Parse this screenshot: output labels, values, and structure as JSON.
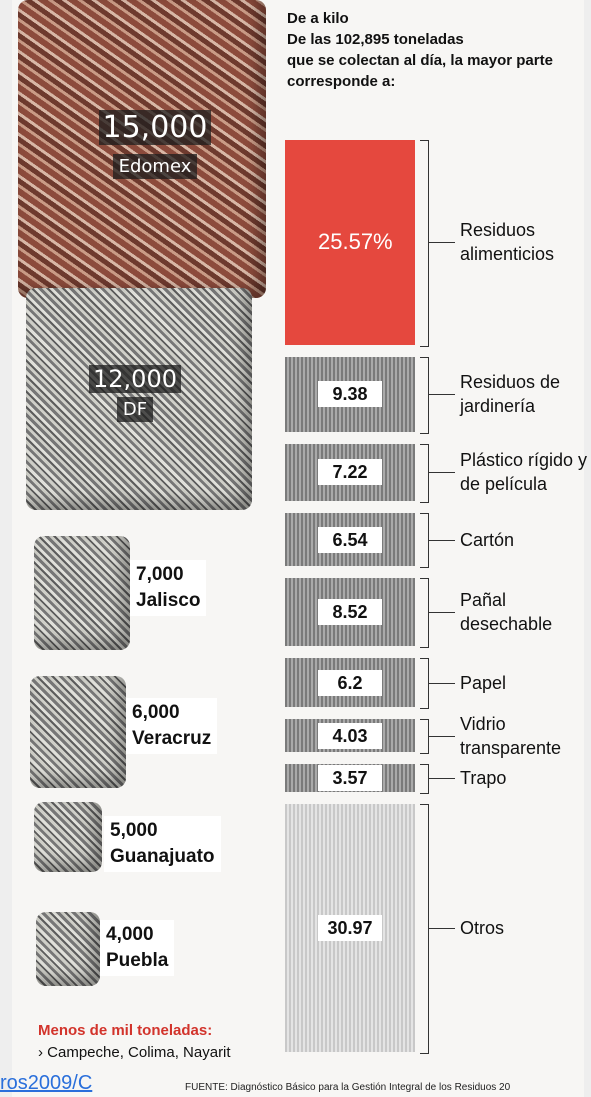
{
  "header": {
    "title": "De a kilo",
    "subtitle": [
      "De las 102,895 toneladas",
      "que se colectan al día, la mayor parte",
      "corresponde a:"
    ]
  },
  "states": [
    {
      "amount": "15,000",
      "name": "Edomex"
    },
    {
      "amount": "12,000",
      "name": "DF"
    },
    {
      "amount": "7,000",
      "name": "Jalisco"
    },
    {
      "amount": "6,000",
      "name": "Veracruz"
    },
    {
      "amount": "5,000",
      "name": "Guanajuato"
    },
    {
      "amount": "4,000",
      "name": "Puebla"
    }
  ],
  "others_note": {
    "title": "Menos de mil toneladas:",
    "text": "› Campeche, Colima, Nayarit"
  },
  "composition": [
    {
      "name": "Residuos alimenticios",
      "value": 25.57,
      "value_label": "25.57%"
    },
    {
      "name": "Residuos de jardinería",
      "value": 9.38
    },
    {
      "name": "Plástico rígido y de película",
      "value": 7.22
    },
    {
      "name": "Cartón",
      "value": 6.54
    },
    {
      "name": "Pañal desechable",
      "value": 8.52
    },
    {
      "name": "Papel",
      "value": 6.2
    },
    {
      "name": "Vidrio transparente",
      "value": 4.03
    },
    {
      "name": "Trapo",
      "value": 3.57
    },
    {
      "name": "Otros",
      "value": 30.97
    }
  ],
  "source": "FUENTE: Diagnóstico Básico para la Gestión Integral de los Residuos 20",
  "link": "ros2009/C"
}
